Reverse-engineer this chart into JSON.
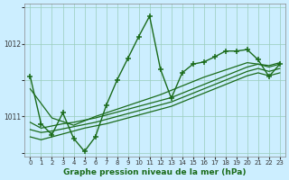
{
  "title": "Graphe pression niveau de la mer (hPa)",
  "bg_color": "#cceeff",
  "grid_color": "#99ccbb",
  "line_color": "#1a6b1a",
  "ylim": [
    1010.45,
    1012.55
  ],
  "yticks": [
    1011,
    1012
  ],
  "xlim": [
    -0.5,
    23.5
  ],
  "xticks": [
    0,
    1,
    2,
    3,
    4,
    5,
    6,
    7,
    8,
    9,
    10,
    11,
    12,
    13,
    14,
    15,
    16,
    17,
    18,
    19,
    20,
    21,
    22,
    23
  ],
  "series_jagged_x": [
    0,
    1,
    2,
    3,
    4,
    5,
    6,
    7,
    8,
    9,
    10,
    11,
    12,
    13,
    14,
    15,
    16,
    17,
    18,
    19,
    20,
    21,
    22,
    23
  ],
  "series_jagged_y": [
    1011.55,
    1010.9,
    1010.75,
    1011.05,
    1010.7,
    1010.52,
    1010.72,
    1011.15,
    1011.5,
    1011.8,
    1012.1,
    1012.38,
    1011.65,
    1011.25,
    1011.6,
    1011.72,
    1011.75,
    1011.82,
    1011.9,
    1011.9,
    1011.92,
    1011.78,
    1011.55,
    1011.72
  ],
  "series_trend1_x": [
    0,
    1,
    2,
    3,
    4,
    5,
    6,
    7,
    8,
    9,
    10,
    11,
    12,
    13,
    14,
    15,
    16,
    17,
    18,
    19,
    20,
    21,
    22,
    23
  ],
  "series_trend1_y": [
    1010.92,
    1010.84,
    1010.87,
    1010.9,
    1010.92,
    1010.95,
    1010.98,
    1011.02,
    1011.06,
    1011.1,
    1011.14,
    1011.18,
    1011.22,
    1011.26,
    1011.32,
    1011.38,
    1011.44,
    1011.5,
    1011.56,
    1011.62,
    1011.68,
    1011.72,
    1011.68,
    1011.72
  ],
  "series_trend2_x": [
    0,
    1,
    2,
    3,
    4,
    5,
    6,
    7,
    8,
    9,
    10,
    11,
    12,
    13,
    14,
    15,
    16,
    17,
    18,
    19,
    20,
    21,
    22,
    23
  ],
  "series_trend2_y": [
    1010.82,
    1010.78,
    1010.8,
    1010.83,
    1010.86,
    1010.89,
    1010.92,
    1010.96,
    1011.0,
    1011.04,
    1011.08,
    1011.12,
    1011.16,
    1011.2,
    1011.26,
    1011.32,
    1011.38,
    1011.44,
    1011.5,
    1011.56,
    1011.62,
    1011.66,
    1011.62,
    1011.66
  ],
  "series_trend3_x": [
    0,
    1,
    2,
    3,
    4,
    5,
    6,
    7,
    8,
    9,
    10,
    11,
    12,
    13,
    14,
    15,
    16,
    17,
    18,
    19,
    20,
    21,
    22,
    23
  ],
  "series_trend3_y": [
    1010.72,
    1010.68,
    1010.72,
    1010.76,
    1010.8,
    1010.84,
    1010.87,
    1010.9,
    1010.94,
    1010.98,
    1011.02,
    1011.06,
    1011.1,
    1011.14,
    1011.2,
    1011.26,
    1011.32,
    1011.38,
    1011.44,
    1011.5,
    1011.56,
    1011.6,
    1011.56,
    1011.6
  ],
  "series_trend4_x": [
    0,
    2,
    4,
    6,
    8,
    10,
    12,
    14,
    16,
    18,
    20,
    22,
    23
  ],
  "series_trend4_y": [
    1011.38,
    1010.98,
    1010.88,
    1011.0,
    1011.1,
    1011.2,
    1011.3,
    1011.42,
    1011.54,
    1011.64,
    1011.74,
    1011.7,
    1011.74
  ]
}
